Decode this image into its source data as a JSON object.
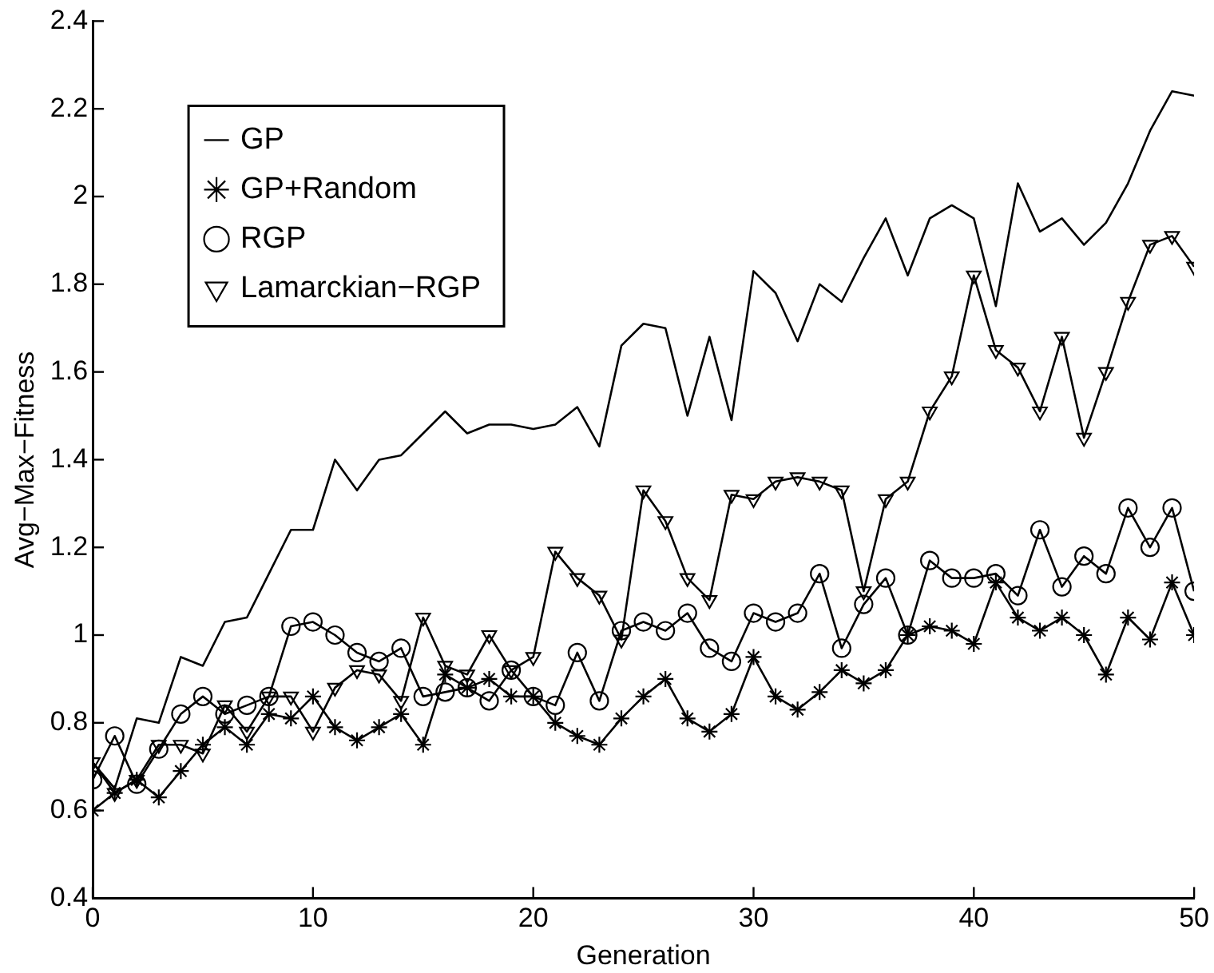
{
  "chart_data": {
    "type": "line",
    "xlabel": "Generation",
    "ylabel": "Avg−Max−Fitness",
    "x": [
      0,
      1,
      2,
      3,
      4,
      5,
      6,
      7,
      8,
      9,
      10,
      11,
      12,
      13,
      14,
      15,
      16,
      17,
      18,
      19,
      20,
      21,
      22,
      23,
      24,
      25,
      26,
      27,
      28,
      29,
      30,
      31,
      32,
      33,
      34,
      35,
      36,
      37,
      38,
      39,
      40,
      41,
      42,
      43,
      44,
      45,
      46,
      47,
      48,
      49,
      50
    ],
    "xlim": [
      0,
      50
    ],
    "xticks": [
      0,
      10,
      20,
      30,
      40,
      50
    ],
    "ylim": [
      0.4,
      2.4
    ],
    "yticks": [
      0.4,
      0.6,
      0.8,
      1,
      1.2,
      1.4,
      1.6,
      1.8,
      2,
      2.2,
      2.4
    ],
    "grid": false,
    "legend": "top left",
    "series": [
      {
        "name": "GP",
        "color": "#000000",
        "marker": "none",
        "values": [
          0.71,
          0.65,
          0.81,
          0.8,
          0.95,
          0.93,
          1.03,
          1.04,
          1.14,
          1.24,
          1.24,
          1.4,
          1.33,
          1.4,
          1.41,
          1.46,
          1.51,
          1.46,
          1.48,
          1.48,
          1.47,
          1.48,
          1.52,
          1.43,
          1.66,
          1.71,
          1.7,
          1.5,
          1.68,
          1.49,
          1.83,
          1.78,
          1.67,
          1.8,
          1.76,
          1.86,
          1.95,
          1.82,
          1.95,
          1.98,
          1.95,
          1.75,
          2.03,
          1.92,
          1.95,
          1.89,
          1.94,
          2.03,
          2.15,
          2.24,
          2.23
        ]
      },
      {
        "name": "GP+Random",
        "color": "#000000",
        "marker": "cross",
        "values": [
          0.6,
          0.64,
          0.67,
          0.63,
          0.69,
          0.75,
          0.79,
          0.75,
          0.82,
          0.81,
          0.86,
          0.79,
          0.76,
          0.79,
          0.82,
          0.75,
          0.91,
          0.88,
          0.9,
          0.86,
          0.86,
          0.8,
          0.77,
          0.75,
          0.81,
          0.86,
          0.9,
          0.81,
          0.78,
          0.82,
          0.95,
          0.86,
          0.83,
          0.87,
          0.92,
          0.89,
          0.92,
          1,
          1.02,
          1.01,
          0.98,
          1.12,
          1.04,
          1.01,
          1.04,
          1,
          0.91,
          1.04,
          0.99,
          1.12,
          1
        ]
      },
      {
        "name": "RGP",
        "color": "#000000",
        "marker": "circle",
        "values": [
          0.67,
          0.77,
          0.66,
          0.74,
          0.82,
          0.86,
          0.82,
          0.84,
          0.86,
          1.02,
          1.03,
          1,
          0.96,
          0.94,
          0.97,
          0.86,
          0.87,
          0.88,
          0.85,
          0.92,
          0.86,
          0.84,
          0.96,
          0.85,
          1.01,
          1.03,
          1.01,
          1.05,
          0.97,
          0.94,
          1.05,
          1.03,
          1.05,
          1.14,
          0.97,
          1.07,
          1.13,
          1,
          1.17,
          1.13,
          1.13,
          1.14,
          1.09,
          1.24,
          1.11,
          1.18,
          1.14,
          1.29,
          1.2,
          1.29,
          1.1
        ]
      },
      {
        "name": "Lamarckian−RGP",
        "color": "#000000",
        "marker": "triangle",
        "values": [
          0.71,
          0.64,
          0.67,
          0.75,
          0.75,
          0.73,
          0.84,
          0.78,
          0.86,
          0.86,
          0.78,
          0.88,
          0.92,
          0.91,
          0.85,
          1.04,
          0.93,
          0.91,
          1,
          0.92,
          0.95,
          1.19,
          1.13,
          1.09,
          0.99,
          1.33,
          1.26,
          1.13,
          1.08,
          1.32,
          1.31,
          1.35,
          1.36,
          1.35,
          1.33,
          1.1,
          1.31,
          1.35,
          1.51,
          1.59,
          1.82,
          1.65,
          1.61,
          1.51,
          1.68,
          1.45,
          1.6,
          1.76,
          1.89,
          1.91,
          1.84
        ]
      }
    ]
  }
}
